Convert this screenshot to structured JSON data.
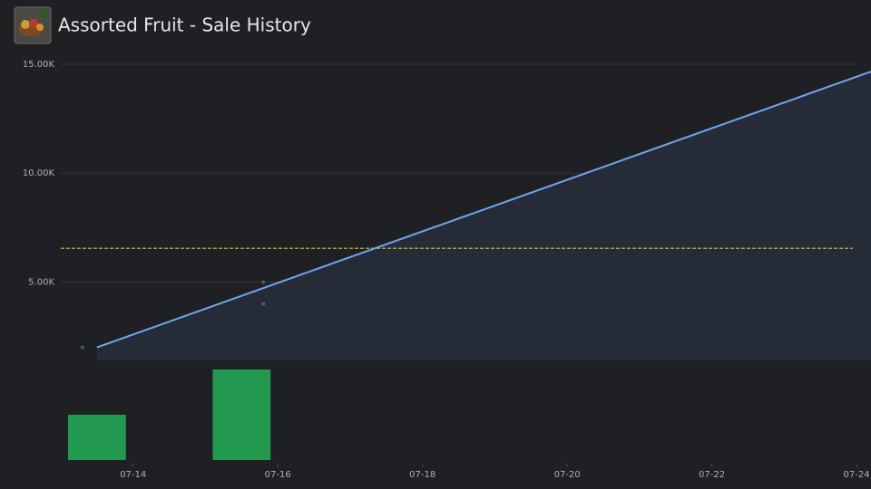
{
  "chart_data": {
    "type": "line",
    "title": "Assorted Fruit - Sale History",
    "x": [
      13.5,
      24.2
    ],
    "values": [
      2000,
      14667
    ],
    "color": "#6ea6f0",
    "area_color": "#252c38",
    "scatter": {
      "x": [
        13.3,
        15.8,
        15.8
      ],
      "values": [
        2000,
        5000,
        4000
      ],
      "color": "#4a5a78"
    },
    "reference_line": {
      "value": 6550,
      "color": "#e8c81c"
    },
    "volume": {
      "type": "bar",
      "x": [
        13.5,
        15.5
      ],
      "values": [
        1,
        2
      ],
      "color": "#22994f"
    },
    "xlim": [
      13,
      24.2
    ],
    "ylim": [
      1400,
      15500
    ],
    "xticks": [
      {
        "value": 14,
        "label": "07-14"
      },
      {
        "value": 16,
        "label": "07-16"
      },
      {
        "value": 18,
        "label": "07-18"
      },
      {
        "value": 20,
        "label": "07-20"
      },
      {
        "value": 22,
        "label": "07-22"
      },
      {
        "value": 24,
        "label": "07-24"
      }
    ],
    "yticks": [
      {
        "value": 5000,
        "label": "5.00K"
      },
      {
        "value": 10000,
        "label": "10.00K"
      },
      {
        "value": 15000,
        "label": "15.00K"
      }
    ],
    "grid": true
  }
}
